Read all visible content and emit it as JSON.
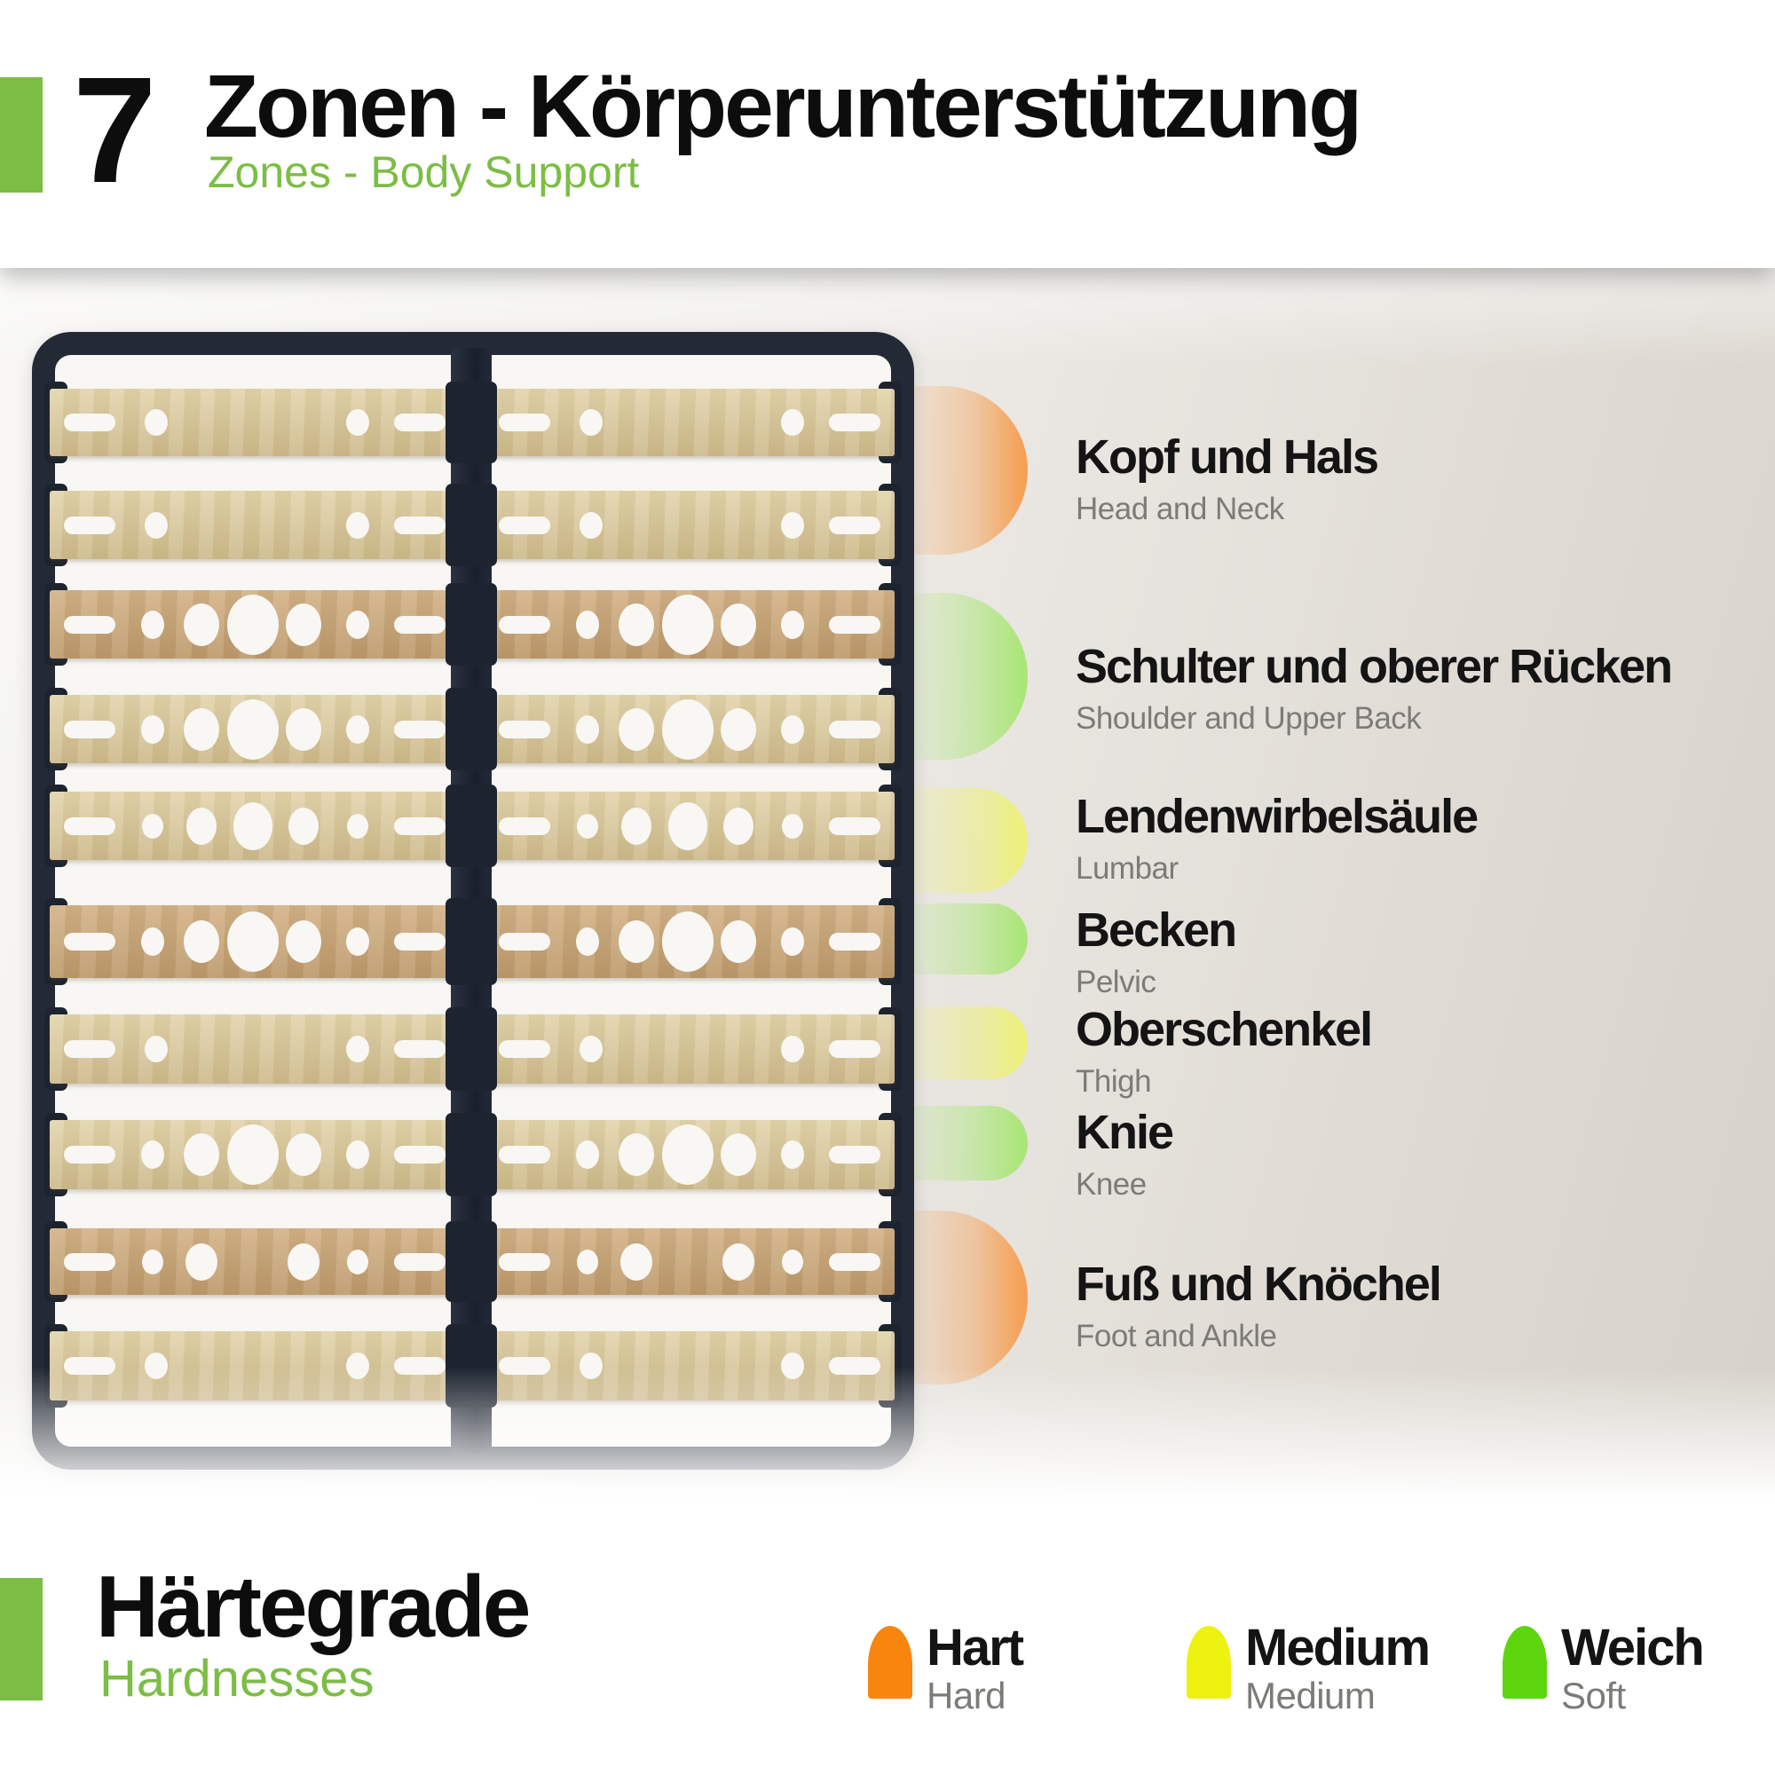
{
  "header": {
    "zone_count": "7",
    "title": "Zonen - Körperunterstützung",
    "subtitle": "Zones - Body Support"
  },
  "zones": [
    {
      "name_de": "Kopf und Hals",
      "name_en": "Head and Neck",
      "hardness": "hart"
    },
    {
      "name_de": "Schulter und oberer Rücken",
      "name_en": "Shoulder and Upper Back",
      "hardness": "weich"
    },
    {
      "name_de": "Lendenwirbelsäule",
      "name_en": "Lumbar",
      "hardness": "medium"
    },
    {
      "name_de": "Becken",
      "name_en": "Pelvic",
      "hardness": "weich"
    },
    {
      "name_de": "Oberschenkel",
      "name_en": "Thigh",
      "hardness": "medium"
    },
    {
      "name_de": "Knie",
      "name_en": "Knee",
      "hardness": "weich"
    },
    {
      "name_de": "Fuß und Knöchel",
      "name_en": "Foot and Ankle",
      "hardness": "hart"
    }
  ],
  "footer": {
    "title": "Härtegrade",
    "subtitle": "Hardnesses",
    "legend": [
      {
        "label_de": "Hart",
        "label_en": "Hard",
        "hardness": "hart"
      },
      {
        "label_de": "Medium",
        "label_en": "Medium",
        "hardness": "medium"
      },
      {
        "label_de": "Weich",
        "label_en": "Soft",
        "hardness": "weich"
      }
    ]
  },
  "frame": {
    "slat_count": 10,
    "slats": [
      {
        "tone": "light",
        "holes": "small"
      },
      {
        "tone": "light",
        "holes": "small"
      },
      {
        "tone": "tan",
        "holes": "large"
      },
      {
        "tone": "light",
        "holes": "large"
      },
      {
        "tone": "light",
        "holes": "medium5"
      },
      {
        "tone": "tan",
        "holes": "large"
      },
      {
        "tone": "light",
        "holes": "small"
      },
      {
        "tone": "light",
        "holes": "large"
      },
      {
        "tone": "tan",
        "holes": "medium4"
      },
      {
        "tone": "light",
        "holes": "small"
      }
    ]
  },
  "colors": {
    "accent_green": "#7cbd45",
    "frame_dark": "#242a35",
    "wood_light": "#d8c89d",
    "wood_tan": "#c9a87c",
    "zone_hart": "#f5a055",
    "zone_medium": "#edf07c",
    "zone_weich": "#abe678",
    "legend_hart": "#f8850e",
    "legend_medium": "#eef211",
    "legend_weich": "#5ed60d"
  }
}
